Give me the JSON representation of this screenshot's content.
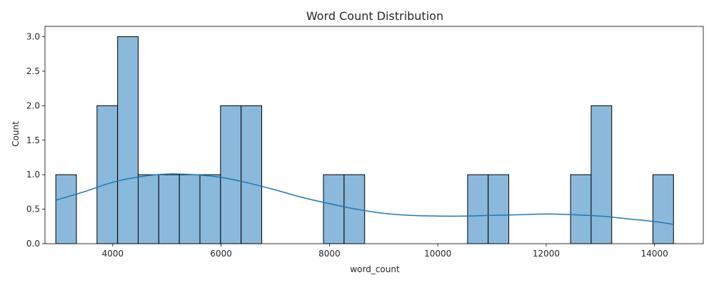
{
  "chart_data": {
    "type": "bar",
    "title": "Word Count Distribution",
    "xlabel": "word_count",
    "ylabel": "Count",
    "bin_edges": [
      2950,
      3330,
      3710,
      4090,
      4470,
      4850,
      5230,
      5610,
      5990,
      6370,
      6750,
      7130,
      7510,
      7890,
      8270,
      8650,
      9030,
      9410,
      9790,
      10170,
      10550,
      10930,
      11310,
      11690,
      12070,
      12450,
      12830,
      13210,
      13590,
      13970,
      14350
    ],
    "values": [
      1,
      0,
      2,
      3,
      1,
      1,
      1,
      1,
      2,
      2,
      0,
      0,
      0,
      1,
      1,
      0,
      0,
      0,
      0,
      0,
      1,
      1,
      0,
      0,
      0,
      1,
      2,
      0,
      0,
      1
    ],
    "kde": {
      "name": "",
      "x": [
        2950,
        3500,
        4000,
        4500,
        5000,
        5500,
        6000,
        6500,
        7000,
        7500,
        8000,
        8500,
        9000,
        9500,
        10000,
        10500,
        11000,
        11500,
        12000,
        12500,
        13000,
        13500,
        14000,
        14350
      ],
      "y": [
        0.63,
        0.76,
        0.89,
        0.97,
        1.01,
        1.0,
        0.96,
        0.88,
        0.78,
        0.67,
        0.58,
        0.5,
        0.44,
        0.41,
        0.4,
        0.4,
        0.41,
        0.42,
        0.43,
        0.42,
        0.4,
        0.36,
        0.32,
        0.28
      ]
    },
    "xlim": [
      2750,
      14900
    ],
    "ylim": [
      0,
      3.15
    ],
    "xticks": [
      4000,
      6000,
      8000,
      10000,
      12000,
      14000
    ],
    "yticks": [
      0.0,
      0.5,
      1.0,
      1.5,
      2.0,
      2.5,
      3.0
    ],
    "bar_color": "#8ab9db",
    "bar_edge_color": "#000000",
    "line_color": "#1f77b4",
    "grid": false,
    "legend": "none"
  }
}
